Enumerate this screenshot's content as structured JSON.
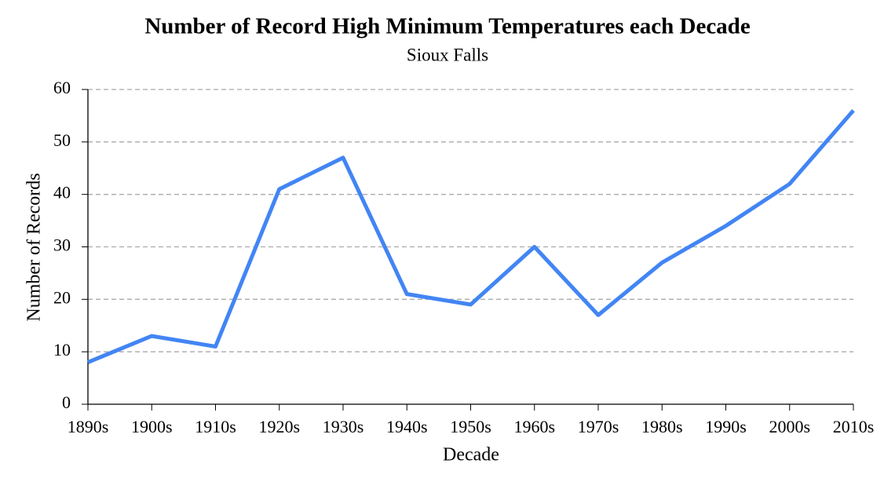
{
  "chart_data": {
    "type": "line",
    "title": "Number of Record High Minimum Temperatures each Decade",
    "subtitle": "Sioux Falls",
    "x_label": "Decade",
    "y_label": "Number of Records",
    "categories": [
      "1890s",
      "1900s",
      "1910s",
      "1920s",
      "1930s",
      "1940s",
      "1950s",
      "1960s",
      "1970s",
      "1980s",
      "1990s",
      "2000s",
      "2010s"
    ],
    "values": [
      8,
      13,
      11,
      41,
      47,
      21,
      19,
      30,
      17,
      27,
      34,
      42,
      56
    ],
    "color": "#4285f4",
    "ylim": [
      0,
      60
    ],
    "yticks": [
      0,
      10,
      20,
      30,
      40,
      50,
      60
    ],
    "grid": true
  }
}
